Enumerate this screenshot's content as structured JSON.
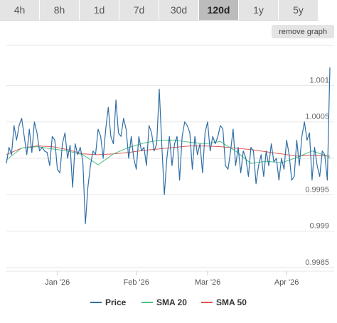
{
  "tabs": [
    {
      "label": "4h",
      "active": false
    },
    {
      "label": "8h",
      "active": false
    },
    {
      "label": "1d",
      "active": false
    },
    {
      "label": "7d",
      "active": false
    },
    {
      "label": "30d",
      "active": false
    },
    {
      "label": "120d",
      "active": true
    },
    {
      "label": "1y",
      "active": false
    },
    {
      "label": "5y",
      "active": false
    }
  ],
  "remove_graph_label": "remove graph",
  "colors": {
    "price": "#2f6ea6",
    "sma20": "#49c382",
    "sma50": "#e0564c"
  },
  "chart_data": {
    "type": "line",
    "title": "",
    "xlabel": "",
    "ylabel": "",
    "ylim": [
      0.99845,
      1.00155
    ],
    "y_ticks": [
      1.001,
      1.0005,
      1,
      0.9995,
      0.999,
      0.9985
    ],
    "y_tick_labels": [
      "1.001",
      "1.0005",
      "",
      "0.9995",
      "0.999",
      "0.9985"
    ],
    "x_ticks": [
      {
        "label": "Jan '26",
        "x": 20
      },
      {
        "label": "Feb '26",
        "x": 51
      },
      {
        "label": "Mar '26",
        "x": 79
      },
      {
        "label": "Apr '26",
        "x": 110
      }
    ],
    "grid": true,
    "legend_position": "bottom",
    "series": [
      {
        "name": "Price",
        "x": [
          0,
          1,
          2,
          3,
          4,
          5,
          6,
          7,
          8,
          9,
          10,
          11,
          12,
          13,
          14,
          15,
          16,
          17,
          18,
          19,
          20,
          21,
          22,
          23,
          24,
          25,
          26,
          27,
          28,
          29,
          30,
          31,
          32,
          33,
          34,
          35,
          36,
          37,
          38,
          39,
          40,
          41,
          42,
          43,
          44,
          45,
          46,
          47,
          48,
          49,
          50,
          51,
          52,
          53,
          54,
          55,
          56,
          57,
          58,
          59,
          60,
          61,
          62,
          63,
          64,
          65,
          66,
          67,
          68,
          69,
          70,
          71,
          72,
          73,
          74,
          75,
          76,
          77,
          78,
          79,
          80,
          81,
          82,
          83,
          84,
          85,
          86,
          87,
          88,
          89,
          90,
          91,
          92,
          93,
          94,
          95,
          96,
          97,
          98,
          99,
          100,
          101,
          102,
          103,
          104,
          105,
          106,
          107,
          108,
          109,
          110,
          111,
          112,
          113,
          114,
          115,
          116,
          117,
          118,
          119,
          120,
          121,
          122,
          123,
          124,
          125,
          126,
          127
        ],
        "values": [
          0.99993,
          1.00015,
          1.00005,
          1.00045,
          1.00025,
          1.00045,
          1.00055,
          1.0003,
          1.00005,
          1.0004,
          1.00008,
          1.0005,
          1.00035,
          1.0001,
          1.00015,
          1.0001,
          1.00008,
          0.9999,
          1.0003,
          1.00025,
          0.99985,
          0.9998,
          1.0002,
          1.00035,
          1.0,
          1.00018,
          0.9996,
          1.0002,
          1.00005,
          1.00015,
          0.99996,
          0.9991,
          0.9996,
          0.9999,
          1.0001,
          1.00005,
          1.0004,
          1.0003,
          1.0,
          1.0004,
          1.0007,
          1.0003,
          1.0002,
          1.0008,
          1.00035,
          1.0003,
          1.00055,
          1.0004,
          1.0,
          1.0003,
          1.0,
          0.99985,
          1.0003,
          1.0001,
          1.00015,
          0.9999,
          1.00045,
          1.00035,
          1.0001,
          1.0002,
          1.00095,
          1.0002,
          0.9995,
          1.0,
          1.0003,
          0.9999,
          1.0002,
          1.0003,
          0.9997,
          1.0003,
          1.0005,
          1.00045,
          1.00035,
          0.99985,
          1.0003,
          1.00005,
          1.0002,
          0.9998,
          1.00035,
          1.0005,
          1.0001,
          1.0003,
          1.0002,
          1.0003,
          1.00045,
          1.0004,
          0.9999,
          0.99985,
          1.0001,
          1.0004,
          0.9999,
          1.00015,
          0.9998,
          1.0001,
          1.0,
          0.99975,
          1.00015,
          1.0001,
          0.99965,
          0.9999,
          1.00005,
          0.99975,
          1.0001,
          0.9999,
          1.0002,
          0.99995,
          1.0,
          0.9997,
          1.0,
          0.99985,
          1.00025,
          1.00005,
          0.9997,
          0.99975,
          1.00025,
          0.9999,
          1.0003,
          1.0005,
          1.00025,
          1.00035,
          0.9997,
          1.00015,
          0.9999,
          0.99975,
          1.0001,
          1.00005,
          0.9997,
          1.00125
        ]
      },
      {
        "name": "SMA 20",
        "x": [
          0,
          6,
          12,
          18,
          24,
          30,
          36,
          42,
          48,
          54,
          60,
          66,
          72,
          78,
          84,
          90,
          96,
          102,
          108,
          114,
          120,
          126,
          127
        ],
        "values": [
          0.99998,
          1.00014,
          1.00016,
          1.00013,
          1.0001,
          1.00005,
          0.99991,
          1.00006,
          1.00015,
          1.00021,
          1.00025,
          1.00025,
          1.00022,
          1.0002,
          1.00023,
          1.0001,
          0.99993,
          0.99996,
          0.99994,
          1.00001,
          1.0001,
          1.00003,
          1.0
        ]
      },
      {
        "name": "SMA 50",
        "x": [
          0,
          6,
          12,
          18,
          24,
          30,
          36,
          42,
          48,
          54,
          60,
          66,
          72,
          78,
          84,
          90,
          96,
          102,
          108,
          114,
          120,
          126,
          127
        ],
        "values": [
          1.00005,
          1.00014,
          1.00017,
          1.00016,
          1.00012,
          1.00006,
          1.00005,
          1.00006,
          1.00008,
          1.00011,
          1.00013,
          1.00015,
          1.00017,
          1.00017,
          1.00016,
          1.00014,
          1.00012,
          1.00009,
          1.00006,
          1.00003,
          1.00004,
          1.00003,
          1.00003
        ]
      }
    ]
  }
}
